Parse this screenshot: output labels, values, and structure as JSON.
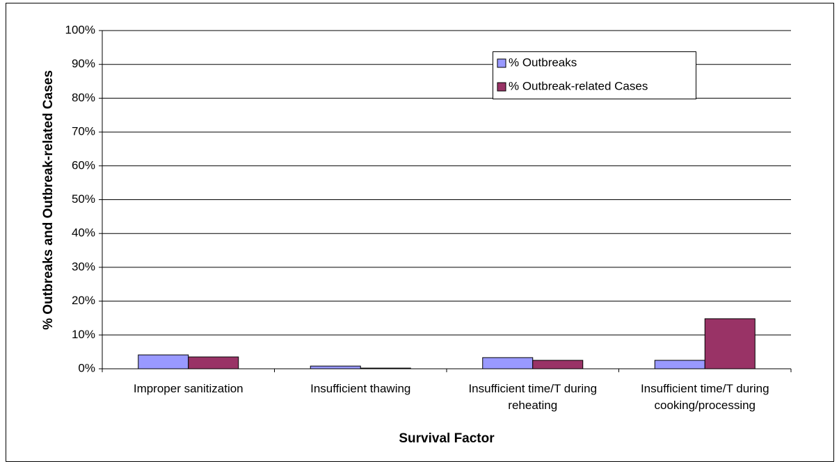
{
  "chart_data": {
    "type": "bar",
    "x_label": "Survival Factor",
    "y_label": "% Outbreaks and Outbreak-related Cases",
    "categories": [
      "Improper sanitization",
      "Insufficient thawing",
      "Insufficient time/T during reheating",
      "Insufficient time/T during cooking/processing"
    ],
    "series": [
      {
        "name": "% Outbreaks",
        "color": "#9999ff",
        "values": [
          4.1,
          0.8,
          3.3,
          2.5
        ]
      },
      {
        "name": "% Outbreak-related Cases",
        "color": "#993366",
        "values": [
          3.5,
          0.2,
          2.5,
          14.8
        ]
      }
    ],
    "ylim": [
      0,
      100
    ],
    "yticks": [
      {
        "value": 0,
        "label": "0%"
      },
      {
        "value": 10,
        "label": "10%"
      },
      {
        "value": 20,
        "label": "20%"
      },
      {
        "value": 30,
        "label": "30%"
      },
      {
        "value": 40,
        "label": "40%"
      },
      {
        "value": 50,
        "label": "50%"
      },
      {
        "value": 60,
        "label": "60%"
      },
      {
        "value": 70,
        "label": "70%"
      },
      {
        "value": 80,
        "label": "80%"
      },
      {
        "value": 90,
        "label": "90%"
      },
      {
        "value": 100,
        "label": "100%"
      }
    ],
    "grid": true,
    "legend_position": "top-right"
  }
}
